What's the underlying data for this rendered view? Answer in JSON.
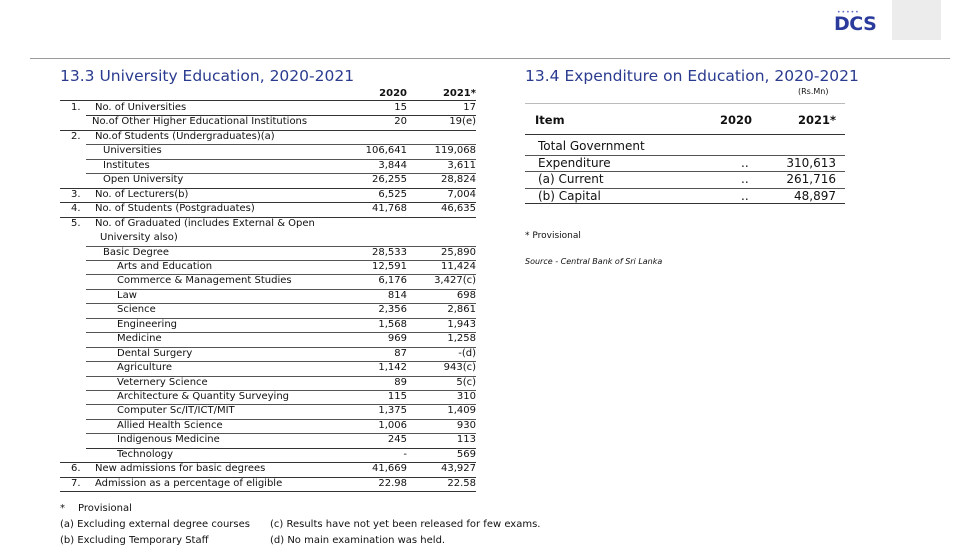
{
  "header": {
    "logo_text": "DCS"
  },
  "left": {
    "title": "13.3 University Education, 2020-2021",
    "col_2020": "2020",
    "col_2021": "2021*",
    "rows": [
      {
        "no": "1.",
        "label": "No. of Universities",
        "v2020": "15",
        "v2021": "17"
      },
      {
        "no": "",
        "label": "No.of Other Higher Educational Institutions",
        "v2020": "20",
        "v2021": "19(e)"
      },
      {
        "no": "2.",
        "label": "No.of Students (Undergraduates)(a)",
        "v2020": "",
        "v2021": ""
      },
      {
        "no": "",
        "label": "Universities",
        "v2020": "106,641",
        "v2021": "119,068"
      },
      {
        "no": "",
        "label": "Institutes",
        "v2020": "3,844",
        "v2021": "3,611"
      },
      {
        "no": "",
        "label": "Open University",
        "v2020": "26,255",
        "v2021": "28,824"
      },
      {
        "no": "3.",
        "label": "No. of Lecturers(b)",
        "v2020": "6,525",
        "v2021": "7,004"
      },
      {
        "no": "4.",
        "label": "No. of Students (Postgraduates)",
        "v2020": "41,768",
        "v2021": "46,635"
      },
      {
        "no": "5.",
        "label": "No. of Graduated (includes External & Open",
        "v2020": "",
        "v2021": ""
      },
      {
        "no": "",
        "label": "University also)",
        "v2020": "",
        "v2021": ""
      },
      {
        "no": "",
        "label": "Basic Degree",
        "v2020": "28,533",
        "v2021": "25,890"
      },
      {
        "no": "",
        "label": "Arts and Education",
        "v2020": "12,591",
        "v2021": "11,424"
      },
      {
        "no": "",
        "label": "Commerce & Management Studies",
        "v2020": "6,176",
        "v2021": "3,427(c)"
      },
      {
        "no": "",
        "label": "Law",
        "v2020": "814",
        "v2021": "698"
      },
      {
        "no": "",
        "label": "Science",
        "v2020": "2,356",
        "v2021": "2,861"
      },
      {
        "no": "",
        "label": "Engineering",
        "v2020": "1,568",
        "v2021": "1,943"
      },
      {
        "no": "",
        "label": "Medicine",
        "v2020": "969",
        "v2021": "1,258"
      },
      {
        "no": "",
        "label": "Dental Surgery",
        "v2020": "87",
        "v2021": "-(d)"
      },
      {
        "no": "",
        "label": "Agriculture",
        "v2020": "1,142",
        "v2021": "943(c)"
      },
      {
        "no": "",
        "label": "Veternery Science",
        "v2020": "89",
        "v2021": "5(c)"
      },
      {
        "no": "",
        "label": "Architecture & Quantity Surveying",
        "v2020": "115",
        "v2021": "310"
      },
      {
        "no": "",
        "label": "Computer Sc/IT/ICT/MIT",
        "v2020": "1,375",
        "v2021": "1,409"
      },
      {
        "no": "",
        "label": "Allied Health Science",
        "v2020": "1,006",
        "v2021": "930"
      },
      {
        "no": "",
        "label": "Indigenous Medicine",
        "v2020": "245",
        "v2021": "113"
      },
      {
        "no": "",
        "label": "Technology",
        "v2020": "-",
        "v2021": "569"
      },
      {
        "no": "6.",
        "label": "New admissions for basic degrees",
        "v2020": "41,669",
        "v2021": "43,927"
      },
      {
        "no": "7.",
        "label": "Admission as a percentage of eligible",
        "v2020": "22.98",
        "v2021": "22.58"
      }
    ],
    "footnotes": {
      "star": "*",
      "provisional": "Provisional",
      "a": "(a) Excluding external degree courses",
      "b": "(b) Excluding Temporary Staff",
      "c": "(c) Results have not yet been released for few exams.",
      "d": "(d) No main examination was held."
    }
  },
  "right": {
    "title": "13.4 Expenditure on Education, 2020-2021",
    "unit": "(Rs.Mn)",
    "col_item": "Item",
    "col_2020": "2020",
    "col_2021": "2021*",
    "rows": [
      {
        "label": "Total Government",
        "v2020": "",
        "v2021": ""
      },
      {
        "label": "Expenditure",
        "v2020": "..",
        "v2021": "310,613"
      },
      {
        "label": "(a)  Current",
        "v2020": "..",
        "v2021": "261,716"
      },
      {
        "label": "(b)  Capital",
        "v2020": "..",
        "v2021": "48,897"
      }
    ],
    "provisional": "* Provisional",
    "source": "Source - Central Bank of Sri Lanka"
  }
}
